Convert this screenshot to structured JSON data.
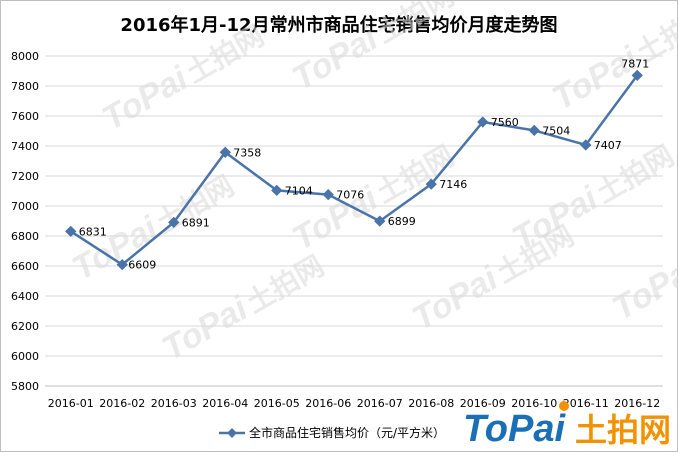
{
  "chart_data": {
    "type": "line",
    "title": "2016年1月-12月常州市商品住宅销售均价月度走势图",
    "categories": [
      "2016-01",
      "2016-02",
      "2016-03",
      "2016-04",
      "2016-05",
      "2016-06",
      "2016-07",
      "2016-08",
      "2016-09",
      "2016-10",
      "2016-11",
      "2016-12"
    ],
    "series": [
      {
        "name": "全市商品住宅销售均价（元/平方米）",
        "values": [
          6831,
          6609,
          6891,
          7358,
          7104,
          7076,
          6899,
          7146,
          7560,
          7504,
          7407,
          7871
        ],
        "color": "#4a74a8"
      }
    ],
    "ylim": [
      5800,
      8000
    ],
    "yticks": [
      5800,
      6000,
      6200,
      6400,
      6600,
      6800,
      7000,
      7200,
      7400,
      7600,
      7800,
      8000
    ],
    "grid": true,
    "legend": "bottom-center",
    "xlabel": "",
    "ylabel": ""
  },
  "watermark": {
    "brand_latin": "ToPai",
    "brand_cn": "土拍网",
    "colors": {
      "brand_blue": "#1a6fb5",
      "brand_orange": "#f29200",
      "faint": "#d9d9d9"
    }
  }
}
